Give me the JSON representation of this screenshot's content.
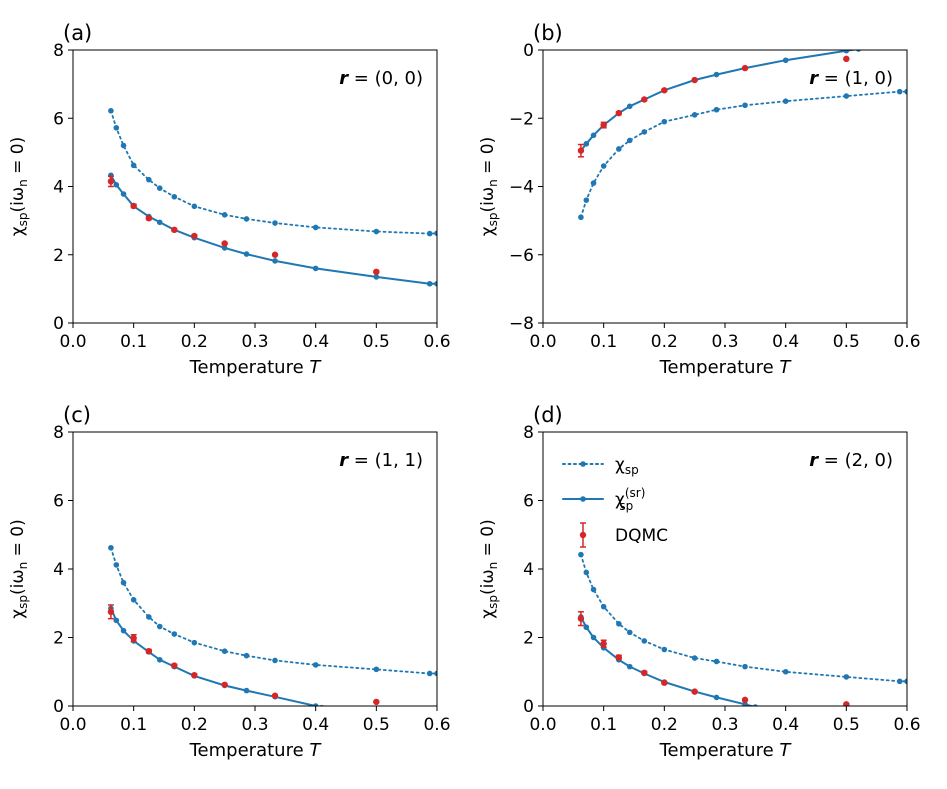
{
  "chart_data": [
    {
      "type": "line",
      "panel_label": "(a)",
      "annotation": {
        "vector": "r",
        "value": " = (0, 0)"
      },
      "xlabel": {
        "text": "Temperature ",
        "var": "T"
      },
      "ylabel": {
        "pre": "χ",
        "sub": "sp",
        "post": "(iω",
        "sub2": "n",
        "post2": " = 0)"
      },
      "xlim": [
        0.0,
        0.6
      ],
      "ylim": [
        0,
        8
      ],
      "xticks": [
        "0.0",
        "0.1",
        "0.2",
        "0.3",
        "0.4",
        "0.5",
        "0.6"
      ],
      "yticks": [
        "0",
        "2",
        "4",
        "6",
        "8"
      ],
      "series": [
        {
          "style": "dotted",
          "x": [
            0.0625,
            0.0714,
            0.0833,
            0.1,
            0.125,
            0.143,
            0.167,
            0.2,
            0.25,
            0.286,
            0.333,
            0.4,
            0.5,
            0.588,
            0.6
          ],
          "y": [
            6.22,
            5.72,
            5.2,
            4.62,
            4.2,
            3.95,
            3.7,
            3.42,
            3.17,
            3.05,
            2.93,
            2.8,
            2.68,
            2.62,
            2.63
          ]
        },
        {
          "style": "solid",
          "x": [
            0.0625,
            0.0714,
            0.0833,
            0.1,
            0.125,
            0.143,
            0.167,
            0.2,
            0.25,
            0.286,
            0.333,
            0.4,
            0.5,
            0.588,
            0.6
          ],
          "y": [
            4.33,
            4.05,
            3.78,
            3.42,
            3.12,
            2.95,
            2.73,
            2.5,
            2.2,
            2.02,
            1.82,
            1.6,
            1.35,
            1.15,
            1.15
          ]
        },
        {
          "style": "errorbar",
          "x": [
            0.0625,
            0.1,
            0.125,
            0.167,
            0.2,
            0.25,
            0.333,
            0.5
          ],
          "y": [
            4.15,
            3.43,
            3.07,
            2.73,
            2.55,
            2.33,
            2.0,
            1.5
          ],
          "err": [
            0.15,
            0.05,
            0.04,
            0.03,
            0.03,
            0.02,
            0.02,
            0.02
          ]
        }
      ]
    },
    {
      "type": "line",
      "panel_label": "(b)",
      "annotation": {
        "vector": "r",
        "value": " = (1, 0)"
      },
      "xlabel": {
        "text": "Temperature ",
        "var": "T"
      },
      "ylabel": {
        "pre": "χ",
        "sub": "sp",
        "post": "(iω",
        "sub2": "n",
        "post2": " = 0)"
      },
      "xlim": [
        0.0,
        0.6
      ],
      "ylim": [
        -8,
        0
      ],
      "xticks": [
        "0.0",
        "0.1",
        "0.2",
        "0.3",
        "0.4",
        "0.5",
        "0.6"
      ],
      "yticks": [
        "−8",
        "−6",
        "−4",
        "−2",
        "0"
      ],
      "series": [
        {
          "style": "dotted",
          "x": [
            0.0625,
            0.0714,
            0.0833,
            0.1,
            0.125,
            0.143,
            0.167,
            0.2,
            0.25,
            0.286,
            0.333,
            0.4,
            0.5,
            0.588,
            0.6
          ],
          "y": [
            -4.9,
            -4.4,
            -3.9,
            -3.4,
            -2.9,
            -2.65,
            -2.4,
            -2.1,
            -1.9,
            -1.75,
            -1.62,
            -1.5,
            -1.35,
            -1.22,
            -1.22
          ]
        },
        {
          "style": "solid",
          "x": [
            0.0625,
            0.0714,
            0.0833,
            0.1,
            0.125,
            0.143,
            0.167,
            0.2,
            0.25,
            0.286,
            0.333,
            0.4,
            0.5,
            0.52
          ],
          "y": [
            -2.95,
            -2.75,
            -2.5,
            -2.2,
            -1.85,
            -1.65,
            -1.45,
            -1.18,
            -0.88,
            -0.72,
            -0.53,
            -0.3,
            -0.02,
            0.03
          ]
        },
        {
          "style": "errorbar",
          "x": [
            0.0625,
            0.1,
            0.125,
            0.167,
            0.2,
            0.25,
            0.333,
            0.5
          ],
          "y": [
            -2.95,
            -2.2,
            -1.85,
            -1.45,
            -1.18,
            -0.88,
            -0.53,
            -0.26
          ],
          "err": [
            0.18,
            0.08,
            0.04,
            0.03,
            0.03,
            0.02,
            0.02,
            0.02
          ]
        }
      ]
    },
    {
      "type": "line",
      "panel_label": "(c)",
      "annotation": {
        "vector": "r",
        "value": " = (1, 1)"
      },
      "xlabel": {
        "text": "Temperature ",
        "var": "T"
      },
      "ylabel": {
        "pre": "χ",
        "sub": "sp",
        "post": "(iω",
        "sub2": "n",
        "post2": " = 0)"
      },
      "xlim": [
        0.0,
        0.6
      ],
      "ylim": [
        0,
        8
      ],
      "xticks": [
        "0.0",
        "0.1",
        "0.2",
        "0.3",
        "0.4",
        "0.5",
        "0.6"
      ],
      "yticks": [
        "0",
        "2",
        "4",
        "6",
        "8"
      ],
      "series": [
        {
          "style": "dotted",
          "x": [
            0.0625,
            0.0714,
            0.0833,
            0.1,
            0.125,
            0.143,
            0.167,
            0.2,
            0.25,
            0.286,
            0.333,
            0.4,
            0.5,
            0.588,
            0.6
          ],
          "y": [
            4.62,
            4.12,
            3.6,
            3.1,
            2.6,
            2.32,
            2.1,
            1.85,
            1.6,
            1.47,
            1.33,
            1.2,
            1.07,
            0.95,
            0.95
          ]
        },
        {
          "style": "solid",
          "x": [
            0.0625,
            0.0714,
            0.0833,
            0.1,
            0.125,
            0.143,
            0.167,
            0.2,
            0.25,
            0.286,
            0.333,
            0.4,
            0.41
          ],
          "y": [
            2.85,
            2.5,
            2.2,
            1.9,
            1.58,
            1.35,
            1.15,
            0.88,
            0.6,
            0.45,
            0.27,
            0.0,
            -0.05
          ]
        },
        {
          "style": "errorbar",
          "x": [
            0.0625,
            0.1,
            0.125,
            0.167,
            0.2,
            0.25,
            0.333,
            0.5
          ],
          "y": [
            2.75,
            1.98,
            1.6,
            1.18,
            0.9,
            0.62,
            0.3,
            0.12
          ],
          "err": [
            0.2,
            0.1,
            0.05,
            0.04,
            0.03,
            0.02,
            0.02,
            0.02
          ]
        }
      ]
    },
    {
      "type": "line",
      "panel_label": "(d)",
      "annotation": {
        "vector": "r",
        "value": " = (2, 0)"
      },
      "xlabel": {
        "text": "Temperature ",
        "var": "T"
      },
      "ylabel": {
        "pre": "χ",
        "sub": "sp",
        "post": "(iω",
        "sub2": "n",
        "post2": " = 0)"
      },
      "xlim": [
        0.0,
        0.6
      ],
      "ylim": [
        0,
        8
      ],
      "xticks": [
        "0.0",
        "0.1",
        "0.2",
        "0.3",
        "0.4",
        "0.5",
        "0.6"
      ],
      "yticks": [
        "0",
        "2",
        "4",
        "6",
        "8"
      ],
      "legend": {
        "position": "top-left",
        "entries": [
          {
            "style": "dotted",
            "pre": "χ",
            "sub": "sp",
            "sup": ""
          },
          {
            "style": "solid",
            "pre": "χ",
            "sub": "sp",
            "sup": "(sr)"
          },
          {
            "style": "errorbar",
            "pre": "DQMC",
            "sub": "",
            "sup": ""
          }
        ]
      },
      "series": [
        {
          "style": "dotted",
          "x": [
            0.0625,
            0.0714,
            0.0833,
            0.1,
            0.125,
            0.143,
            0.167,
            0.2,
            0.25,
            0.286,
            0.333,
            0.4,
            0.5,
            0.588,
            0.6
          ],
          "y": [
            4.42,
            3.9,
            3.4,
            2.9,
            2.4,
            2.15,
            1.9,
            1.65,
            1.4,
            1.3,
            1.15,
            1.0,
            0.85,
            0.72,
            0.72
          ]
        },
        {
          "style": "solid",
          "x": [
            0.0625,
            0.0714,
            0.0833,
            0.1,
            0.125,
            0.143,
            0.167,
            0.2,
            0.25,
            0.286,
            0.333,
            0.35
          ],
          "y": [
            2.6,
            2.3,
            2.0,
            1.7,
            1.35,
            1.15,
            0.95,
            0.7,
            0.42,
            0.25,
            0.05,
            -0.03
          ]
        },
        {
          "style": "errorbar",
          "x": [
            0.0625,
            0.1,
            0.125,
            0.167,
            0.2,
            0.25,
            0.333,
            0.5
          ],
          "y": [
            2.55,
            1.82,
            1.42,
            0.97,
            0.68,
            0.42,
            0.18,
            0.05
          ],
          "err": [
            0.2,
            0.1,
            0.06,
            0.04,
            0.03,
            0.02,
            0.02,
            0.02
          ]
        }
      ]
    }
  ]
}
